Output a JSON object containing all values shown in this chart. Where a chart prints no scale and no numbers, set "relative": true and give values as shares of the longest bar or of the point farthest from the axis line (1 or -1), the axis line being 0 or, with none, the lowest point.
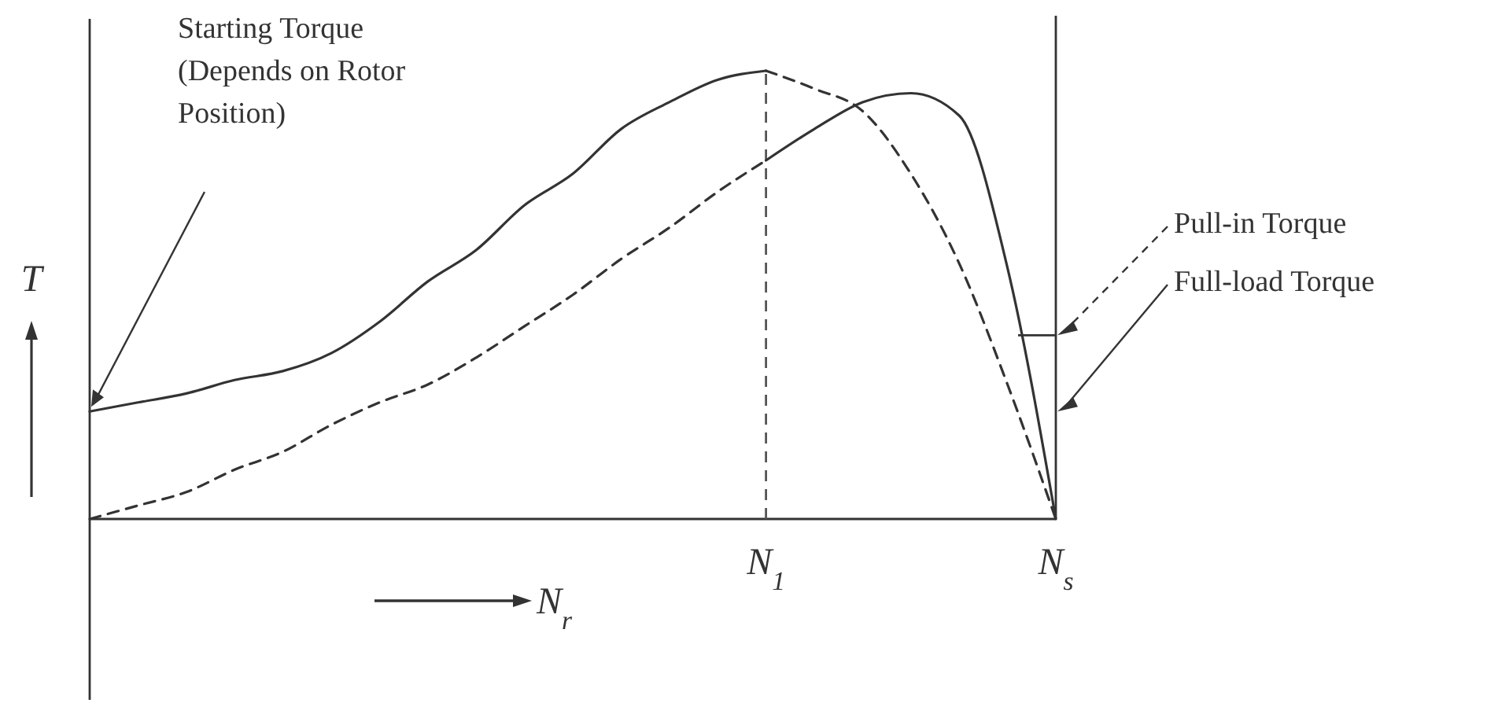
{
  "chart_data": {
    "type": "line",
    "relative": true,
    "xlabel": "N$_{r}$",
    "ylabel": "T",
    "categories": [
      null,
      null,
      null,
      null,
      null,
      null,
      null,
      null,
      null,
      null,
      null,
      null,
      null,
      null,
      "N$_{1}$",
      null,
      null,
      null,
      null,
      null,
      "N$_{s}$"
    ],
    "series": [
      {
        "color": "#333333",
        "line_style": "solid",
        "values": [
          0.24,
          0.26,
          0.28,
          0.31,
          0.33,
          0.37,
          0.44,
          0.53,
          0.6,
          0.7,
          0.77,
          0.87,
          0.93,
          0.98,
          1.0,
          null,
          null,
          null,
          null,
          null,
          null
        ]
      },
      {
        "color": "#333333",
        "line_style": "dashed",
        "values": [
          null,
          null,
          null,
          null,
          null,
          null,
          null,
          null,
          null,
          null,
          null,
          null,
          null,
          null,
          1.0,
          0.96,
          0.91,
          0.77,
          0.57,
          0.3,
          0
        ]
      },
      {
        "color": "#333333",
        "line_style": "dashed",
        "values": [
          0,
          0.03,
          0.06,
          0.11,
          0.15,
          0.21,
          0.26,
          0.3,
          0.36,
          0.43,
          0.5,
          0.58,
          0.65,
          0.73,
          0.8,
          null,
          null,
          null,
          null,
          null,
          null
        ]
      },
      {
        "color": "#333333",
        "line_style": "solid",
        "values": [
          null,
          null,
          null,
          null,
          null,
          null,
          null,
          null,
          null,
          null,
          null,
          null,
          null,
          null,
          0.8,
          0.87,
          0.93,
          0.95,
          0.9,
          0.56,
          0
        ]
      }
    ],
    "ref_lines": [
      {
        "axis": "x",
        "value": "N$_{1}$",
        "line_style": "dashed",
        "color": "#555555"
      },
      {
        "axis": "x",
        "value": "N$_{s}$",
        "line_style": "solid",
        "color": "#333333"
      }
    ],
    "annotations": [
      "Starting Torque (Depends on Rotor Position)",
      {
        "text": "Pull-in Torque",
        "x": "N$_{s}$",
        "y": 0.41
      },
      {
        "text": "Full-load Torque",
        "x": "N$_{s}$",
        "y": 0.24
      }
    ]
  }
}
